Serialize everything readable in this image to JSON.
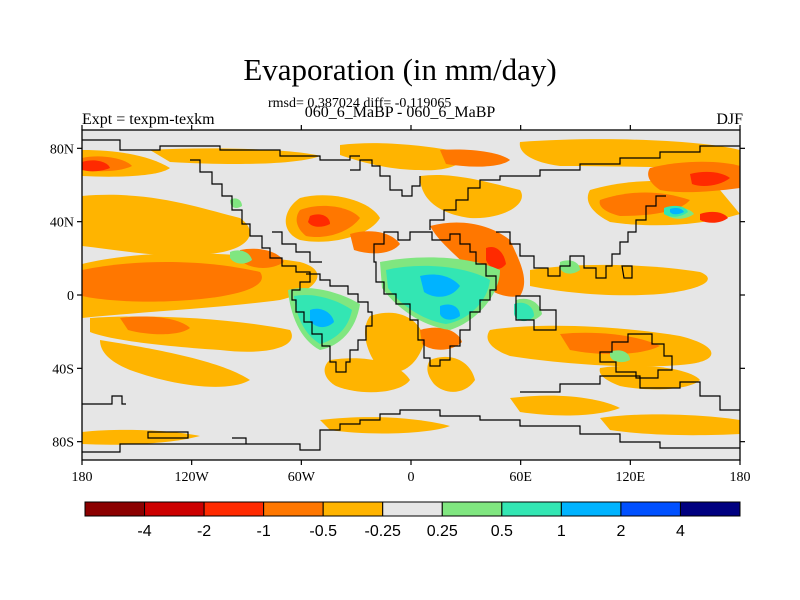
{
  "title": "Evaporation (in mm/day)",
  "stats": "rmsd= 0.387024 diff= -0.119065",
  "experiment_label": "Expt = texpm-texkm",
  "comparison_label": "060_6_MaBP - 060_6_MaBP",
  "season": "DJF",
  "map": {
    "x_ticks": [
      "180",
      "120W",
      "60W",
      "0",
      "60E",
      "120E",
      "180"
    ],
    "x_tick_values": [
      -180,
      -120,
      -60,
      0,
      60,
      120,
      180
    ],
    "y_ticks": [
      "80N",
      "40N",
      "0",
      "40S",
      "80S"
    ],
    "y_tick_values": [
      80,
      40,
      0,
      -40,
      -80
    ],
    "lon_range": [
      -180,
      180
    ],
    "lat_range": [
      -90,
      90
    ],
    "background_color": "#e6e6e6"
  },
  "colorbar": {
    "colors": [
      "#8b0000",
      "#cc0000",
      "#ff2a00",
      "#ff7700",
      "#ffb400",
      "#e6e6e6",
      "#80e680",
      "#33e6b3",
      "#00b3ff",
      "#0050ff",
      "#000080"
    ],
    "labels": [
      "-4",
      "-2",
      "-1",
      "-0.5",
      "-0.25",
      "0.25",
      "0.5",
      "1",
      "2",
      "4"
    ]
  }
}
